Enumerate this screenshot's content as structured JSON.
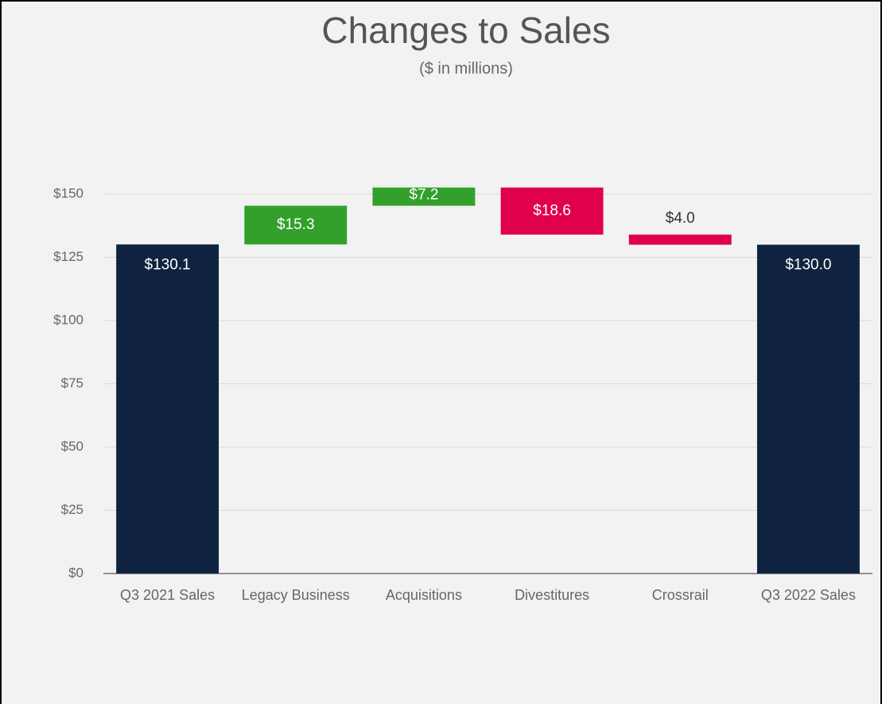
{
  "chart_data": {
    "type": "waterfall",
    "title": "Changes to Sales",
    "subtitle": "($ in millions)",
    "categories": [
      "Q3 2021 Sales",
      "Legacy Business",
      "Acquisitions",
      "Divestitures",
      "Crossrail",
      "Q3 2022 Sales"
    ],
    "values": [
      130.1,
      15.3,
      7.2,
      -18.6,
      -4.0,
      130.0
    ],
    "value_labels": [
      "$130.1",
      "$15.3",
      "$7.2",
      "$18.6",
      "$4.0",
      "$130.0"
    ],
    "measures": [
      "total",
      "relative",
      "relative",
      "relative",
      "relative",
      "total"
    ],
    "colors": {
      "total": "#0f2340",
      "increase": "#33a02c",
      "decrease": "#e0004d"
    },
    "ylim": [
      0,
      150
    ],
    "yticks": [
      {
        "value": 0,
        "label": "$0"
      },
      {
        "value": 25,
        "label": "$25"
      },
      {
        "value": 50,
        "label": "$50"
      },
      {
        "value": 75,
        "label": "$75"
      },
      {
        "value": 100,
        "label": "$100"
      },
      {
        "value": 125,
        "label": "$125"
      },
      {
        "value": 150,
        "label": "$150"
      }
    ],
    "grid": true
  }
}
